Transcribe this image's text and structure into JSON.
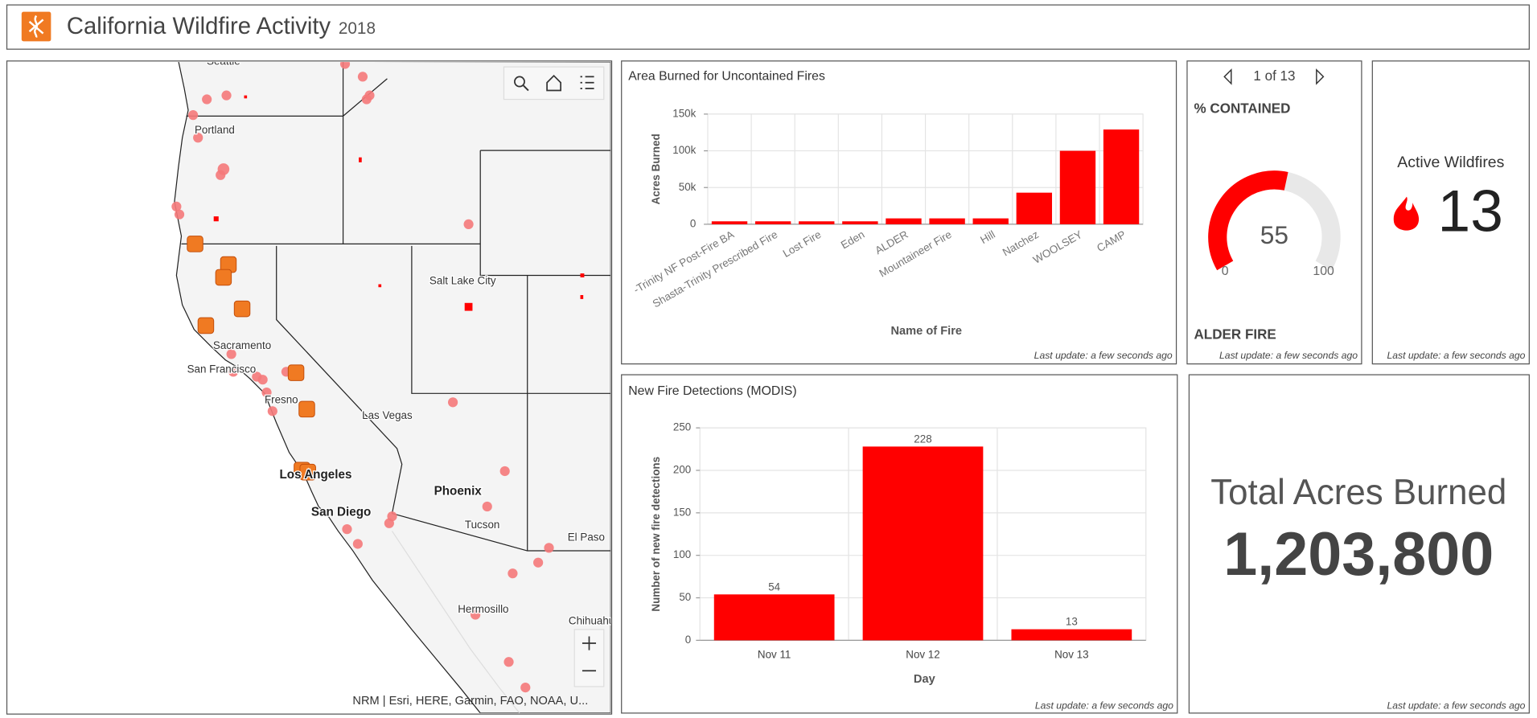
{
  "header": {
    "title": "California Wildfire Activity",
    "subtitle": "2018"
  },
  "map": {
    "labels": [
      "Seattle",
      "Portland",
      "Salt Lake City",
      "Sacramento",
      "San Francisco",
      "Fresno",
      "Las Vegas",
      "Los Angeles",
      "Phoenix",
      "San Diego",
      "Tucson",
      "El Paso",
      "Hermosillo",
      "Chihuahua"
    ],
    "attribution": "NRM | Esri, HERE, Garmin, FAO, NOAA, U..."
  },
  "chart_data": [
    {
      "type": "bar",
      "title": "Area Burned for Uncontained Fires",
      "xlabel": "Name of Fire",
      "ylabel": "Acres Burned",
      "categories": [
        "-Trinity NF Post-Fire BA",
        "Shasta-Trinity Prescribed Fire",
        "Lost Fire",
        "Eden",
        "ALDER",
        "Mountaineer Fire",
        "Hill",
        "Natchez",
        "WOOLSEY",
        "CAMP"
      ],
      "values": [
        4000,
        4000,
        4000,
        4000,
        8000,
        8000,
        8000,
        43000,
        100000,
        129000
      ],
      "color": "#ff0000",
      "ylim": [
        0,
        150000
      ],
      "yticks": [
        0,
        {
          "value": 50000,
          "label": "50k"
        },
        {
          "value": 100000,
          "label": "100k"
        },
        {
          "value": 150000,
          "label": "150k"
        }
      ],
      "grid": true,
      "footer": "Last update: a few seconds ago"
    },
    {
      "type": "bar",
      "title": "New Fire Detections (MODIS)",
      "xlabel": "Day",
      "ylabel": "Number of new fire detections",
      "categories": [
        "Nov 11",
        "Nov 12",
        "Nov 13"
      ],
      "values": [
        54,
        228,
        13
      ],
      "color": "#ff0000",
      "ylim": [
        0,
        250
      ],
      "yticks": [
        0,
        50,
        100,
        150,
        200,
        250
      ],
      "grid": true,
      "footer": "Last update: a few seconds ago"
    }
  ],
  "gauge": {
    "pager": "1 of 13",
    "title": "% CONTAINED",
    "value": 55,
    "min": 0,
    "max": 100,
    "name": "ALDER FIRE",
    "color": "#ff0000",
    "footer": "Last update: a few seconds ago"
  },
  "indicator": {
    "title": "Active Wildfires",
    "value": 13,
    "footer": "Last update: a few seconds ago"
  },
  "total": {
    "title": "Total Acres Burned",
    "value": {
      "value": 1203800,
      "label": "1,203,800"
    },
    "color": "#e00000",
    "footer": "Last update: a few seconds ago"
  }
}
